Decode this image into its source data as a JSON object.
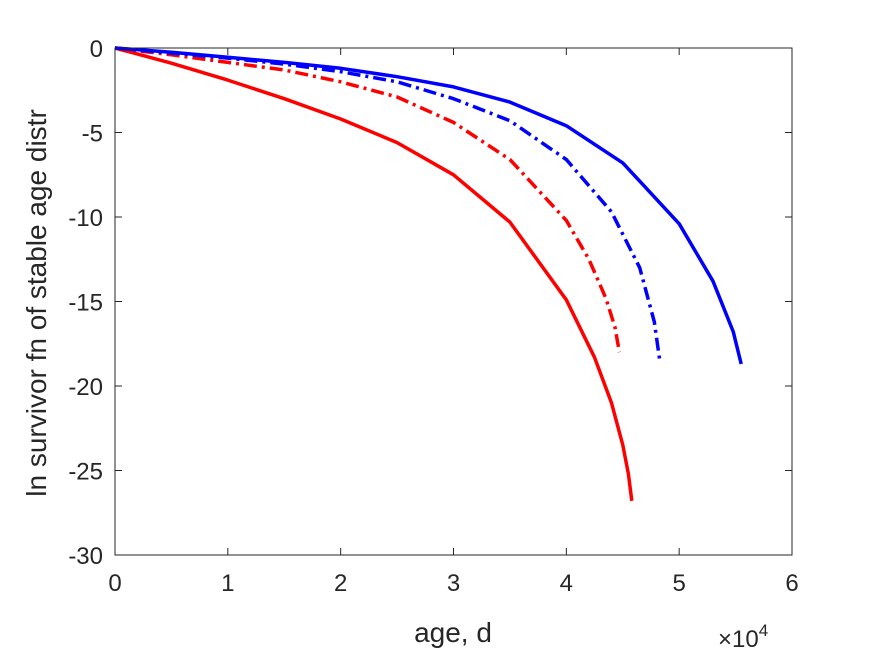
{
  "chart_data": {
    "type": "line",
    "title": "",
    "xlabel": "age, d",
    "ylabel": "ln survivor fn of stable age distr",
    "x_exponent_label": {
      "base": "×10",
      "exponent": "4"
    },
    "xlim": [
      0,
      60000
    ],
    "ylim": [
      -30,
      0
    ],
    "xticks": [
      0,
      10000,
      20000,
      30000,
      40000,
      50000,
      60000
    ],
    "xtick_labels": [
      "0",
      "1",
      "2",
      "3",
      "4",
      "5",
      "6"
    ],
    "yticks": [
      0,
      -5,
      -10,
      -15,
      -20,
      -25,
      -30
    ],
    "ytick_labels": [
      "0",
      "-5",
      "-10",
      "-15",
      "-20",
      "-25",
      "-30"
    ],
    "grid": false,
    "box": true,
    "series": [
      {
        "color": "#ff0000",
        "style": "solid",
        "x": [
          0,
          5000,
          10000,
          15000,
          20000,
          25000,
          30000,
          35000,
          40000,
          42500,
          44000,
          45000,
          45500,
          45800
        ],
        "y": [
          0,
          -0.9,
          -1.9,
          -3.0,
          -4.2,
          -5.6,
          -7.5,
          -10.3,
          -14.9,
          -18.3,
          -21.0,
          -23.5,
          -25.2,
          -26.8
        ]
      },
      {
        "color": "#ff0000",
        "style": "dashdot",
        "x": [
          0,
          5000,
          10000,
          15000,
          20000,
          25000,
          30000,
          35000,
          40000,
          42000,
          43500,
          44300,
          44700
        ],
        "y": [
          0,
          -0.4,
          -0.85,
          -1.3,
          -2.0,
          -2.9,
          -4.4,
          -6.6,
          -10.2,
          -12.5,
          -14.8,
          -16.5,
          -18.0
        ]
      },
      {
        "color": "#0000ff",
        "style": "dashdot",
        "x": [
          0,
          5000,
          10000,
          15000,
          20000,
          25000,
          30000,
          35000,
          40000,
          44000,
          46500,
          47800,
          48300
        ],
        "y": [
          0,
          -0.3,
          -0.6,
          -0.95,
          -1.4,
          -2.0,
          -3.0,
          -4.3,
          -6.6,
          -9.7,
          -13.0,
          -16.2,
          -18.6
        ]
      },
      {
        "color": "#0000ff",
        "style": "solid",
        "x": [
          0,
          5000,
          10000,
          15000,
          20000,
          25000,
          30000,
          35000,
          40000,
          45000,
          50000,
          53000,
          54800,
          55500
        ],
        "y": [
          0,
          -0.25,
          -0.55,
          -0.85,
          -1.2,
          -1.7,
          -2.3,
          -3.2,
          -4.6,
          -6.8,
          -10.4,
          -13.8,
          -16.8,
          -18.7
        ]
      }
    ]
  }
}
